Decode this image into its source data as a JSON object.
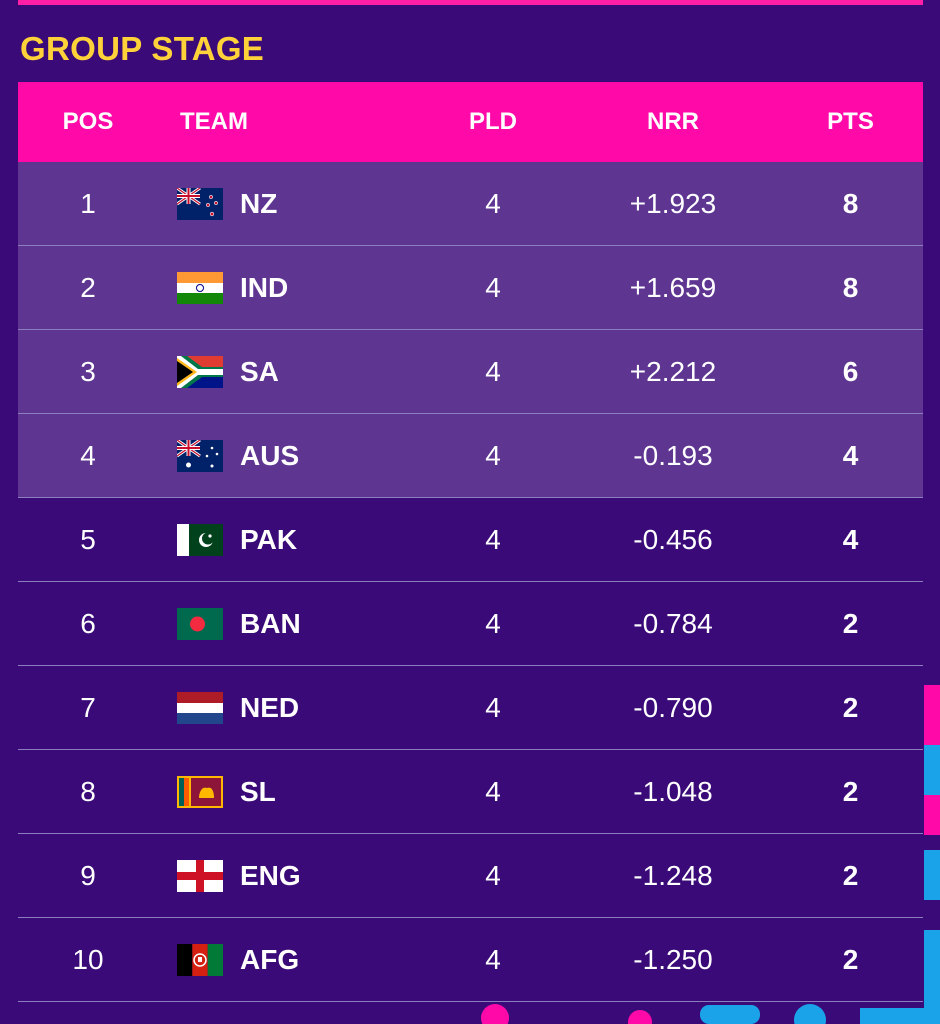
{
  "header": {
    "title": "GROUP STAGE"
  },
  "columns": {
    "pos": "POS",
    "team": "TEAM",
    "pld": "PLD",
    "nrr": "NRR",
    "pts": "PTS"
  },
  "rows": [
    {
      "pos": "1",
      "team": "NZ",
      "flag": "new-zealand-flag",
      "pld": "4",
      "nrr": "+1.923",
      "pts": "8"
    },
    {
      "pos": "2",
      "team": "IND",
      "flag": "india-flag",
      "pld": "4",
      "nrr": "+1.659",
      "pts": "8"
    },
    {
      "pos": "3",
      "team": "SA",
      "flag": "south-africa-flag",
      "pld": "4",
      "nrr": "+2.212",
      "pts": "6"
    },
    {
      "pos": "4",
      "team": "AUS",
      "flag": "australia-flag",
      "pld": "4",
      "nrr": "-0.193",
      "pts": "4"
    },
    {
      "pos": "5",
      "team": "PAK",
      "flag": "pakistan-flag",
      "pld": "4",
      "nrr": "-0.456",
      "pts": "4"
    },
    {
      "pos": "6",
      "team": "BAN",
      "flag": "bangladesh-flag",
      "pld": "4",
      "nrr": "-0.784",
      "pts": "2"
    },
    {
      "pos": "7",
      "team": "NED",
      "flag": "netherlands-flag",
      "pld": "4",
      "nrr": "-0.790",
      "pts": "2"
    },
    {
      "pos": "8",
      "team": "SL",
      "flag": "sri-lanka-flag",
      "pld": "4",
      "nrr": "-1.048",
      "pts": "2"
    },
    {
      "pos": "9",
      "team": "ENG",
      "flag": "england-flag",
      "pld": "4",
      "nrr": "-1.248",
      "pts": "2"
    },
    {
      "pos": "10",
      "team": "AFG",
      "flag": "afghanistan-flag",
      "pld": "4",
      "nrr": "-1.250",
      "pts": "2"
    }
  ],
  "colors": {
    "background": "#3a0a78",
    "header_bar": "#ff0aa8",
    "highlight_rows": "#5e3591",
    "title": "#ffd23a",
    "accent_blue": "#1aa3e8"
  }
}
